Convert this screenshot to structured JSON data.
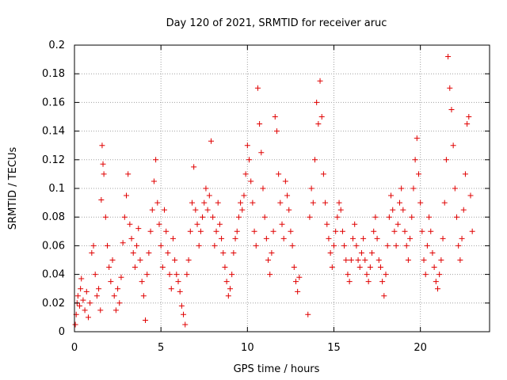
{
  "chart_data": {
    "type": "scatter",
    "title": "Day 120 of 2021, SRMTID for receiver aruc",
    "xlabel": "GPS time / hours",
    "ylabel": "SRMTID / TECUs",
    "xlim": [
      0,
      24
    ],
    "ylim": [
      0,
      0.2
    ],
    "xticks": [
      0,
      5,
      10,
      15,
      20
    ],
    "xtick_labels": [
      "0",
      "5",
      "10",
      "15",
      "20"
    ],
    "yticks": [
      0,
      0.02,
      0.04,
      0.06,
      0.08,
      0.1,
      0.12,
      0.14,
      0.16,
      0.18,
      0.2
    ],
    "ytick_labels": [
      "0",
      "0.02",
      "0.04",
      "0.06",
      "0.08",
      "0.1",
      "0.12",
      "0.14",
      "0.16",
      "0.18",
      "0.2"
    ],
    "grid": true,
    "marker": "+",
    "color": "#e00000",
    "series": [
      {
        "name": "SRMTID",
        "points": [
          [
            0.05,
            0.005
          ],
          [
            0.1,
            0.012
          ],
          [
            0.15,
            0.02
          ],
          [
            0.2,
            0.025
          ],
          [
            0.3,
            0.018
          ],
          [
            0.35,
            0.03
          ],
          [
            0.4,
            0.037
          ],
          [
            0.5,
            0.022
          ],
          [
            0.6,
            0.015
          ],
          [
            0.7,
            0.028
          ],
          [
            0.8,
            0.01
          ],
          [
            0.9,
            0.02
          ],
          [
            1.0,
            0.055
          ],
          [
            1.1,
            0.06
          ],
          [
            1.2,
            0.04
          ],
          [
            1.3,
            0.025
          ],
          [
            1.4,
            0.03
          ],
          [
            1.5,
            0.015
          ],
          [
            1.55,
            0.092
          ],
          [
            1.6,
            0.13
          ],
          [
            1.65,
            0.117
          ],
          [
            1.7,
            0.11
          ],
          [
            1.8,
            0.08
          ],
          [
            1.9,
            0.06
          ],
          [
            2.0,
            0.045
          ],
          [
            2.1,
            0.035
          ],
          [
            2.2,
            0.05
          ],
          [
            2.3,
            0.025
          ],
          [
            2.4,
            0.015
          ],
          [
            2.5,
            0.03
          ],
          [
            2.6,
            0.02
          ],
          [
            2.7,
            0.038
          ],
          [
            2.8,
            0.062
          ],
          [
            2.9,
            0.08
          ],
          [
            3.0,
            0.095
          ],
          [
            3.1,
            0.11
          ],
          [
            3.2,
            0.075
          ],
          [
            3.3,
            0.065
          ],
          [
            3.4,
            0.055
          ],
          [
            3.5,
            0.045
          ],
          [
            3.6,
            0.06
          ],
          [
            3.7,
            0.072
          ],
          [
            3.8,
            0.05
          ],
          [
            3.9,
            0.035
          ],
          [
            4.0,
            0.025
          ],
          [
            4.1,
            0.008
          ],
          [
            4.2,
            0.04
          ],
          [
            4.3,
            0.055
          ],
          [
            4.4,
            0.07
          ],
          [
            4.5,
            0.085
          ],
          [
            4.6,
            0.105
          ],
          [
            4.7,
            0.12
          ],
          [
            4.8,
            0.09
          ],
          [
            4.9,
            0.075
          ],
          [
            5.0,
            0.06
          ],
          [
            5.1,
            0.045
          ],
          [
            5.2,
            0.085
          ],
          [
            5.3,
            0.07
          ],
          [
            5.4,
            0.055
          ],
          [
            5.5,
            0.04
          ],
          [
            5.6,
            0.03
          ],
          [
            5.7,
            0.065
          ],
          [
            5.8,
            0.05
          ],
          [
            5.9,
            0.04
          ],
          [
            6.0,
            0.035
          ],
          [
            6.1,
            0.028
          ],
          [
            6.2,
            0.018
          ],
          [
            6.3,
            0.012
          ],
          [
            6.4,
            0.005
          ],
          [
            6.5,
            0.04
          ],
          [
            6.6,
            0.05
          ],
          [
            6.7,
            0.07
          ],
          [
            6.8,
            0.09
          ],
          [
            6.9,
            0.115
          ],
          [
            7.0,
            0.085
          ],
          [
            7.1,
            0.075
          ],
          [
            7.2,
            0.06
          ],
          [
            7.3,
            0.07
          ],
          [
            7.4,
            0.08
          ],
          [
            7.5,
            0.09
          ],
          [
            7.6,
            0.1
          ],
          [
            7.7,
            0.085
          ],
          [
            7.8,
            0.095
          ],
          [
            7.9,
            0.133
          ],
          [
            8.0,
            0.08
          ],
          [
            8.1,
            0.06
          ],
          [
            8.2,
            0.07
          ],
          [
            8.3,
            0.09
          ],
          [
            8.4,
            0.075
          ],
          [
            8.5,
            0.065
          ],
          [
            8.6,
            0.055
          ],
          [
            8.7,
            0.045
          ],
          [
            8.8,
            0.035
          ],
          [
            8.9,
            0.025
          ],
          [
            9.0,
            0.03
          ],
          [
            9.1,
            0.04
          ],
          [
            9.2,
            0.055
          ],
          [
            9.3,
            0.065
          ],
          [
            9.4,
            0.07
          ],
          [
            9.5,
            0.08
          ],
          [
            9.6,
            0.09
          ],
          [
            9.7,
            0.085
          ],
          [
            9.8,
            0.095
          ],
          [
            9.9,
            0.11
          ],
          [
            10.0,
            0.13
          ],
          [
            10.1,
            0.12
          ],
          [
            10.2,
            0.105
          ],
          [
            10.3,
            0.09
          ],
          [
            10.4,
            0.07
          ],
          [
            10.5,
            0.06
          ],
          [
            10.6,
            0.17
          ],
          [
            10.7,
            0.145
          ],
          [
            10.8,
            0.125
          ],
          [
            10.9,
            0.1
          ],
          [
            11.0,
            0.08
          ],
          [
            11.1,
            0.065
          ],
          [
            11.2,
            0.05
          ],
          [
            11.3,
            0.04
          ],
          [
            11.4,
            0.055
          ],
          [
            11.5,
            0.07
          ],
          [
            11.6,
            0.15
          ],
          [
            11.7,
            0.14
          ],
          [
            11.8,
            0.11
          ],
          [
            11.9,
            0.09
          ],
          [
            12.0,
            0.075
          ],
          [
            12.1,
            0.065
          ],
          [
            12.2,
            0.105
          ],
          [
            12.3,
            0.095
          ],
          [
            12.4,
            0.085
          ],
          [
            12.5,
            0.07
          ],
          [
            12.6,
            0.06
          ],
          [
            12.7,
            0.045
          ],
          [
            12.8,
            0.035
          ],
          [
            12.9,
            0.028
          ],
          [
            13.0,
            0.038
          ],
          [
            13.5,
            0.012
          ],
          [
            13.6,
            0.08
          ],
          [
            13.7,
            0.1
          ],
          [
            13.8,
            0.09
          ],
          [
            13.9,
            0.12
          ],
          [
            14.0,
            0.16
          ],
          [
            14.1,
            0.145
          ],
          [
            14.2,
            0.175
          ],
          [
            14.3,
            0.15
          ],
          [
            14.4,
            0.11
          ],
          [
            14.5,
            0.09
          ],
          [
            14.6,
            0.075
          ],
          [
            14.7,
            0.065
          ],
          [
            14.8,
            0.055
          ],
          [
            14.9,
            0.045
          ],
          [
            15.0,
            0.06
          ],
          [
            15.1,
            0.07
          ],
          [
            15.2,
            0.08
          ],
          [
            15.3,
            0.09
          ],
          [
            15.4,
            0.085
          ],
          [
            15.5,
            0.07
          ],
          [
            15.6,
            0.06
          ],
          [
            15.7,
            0.05
          ],
          [
            15.8,
            0.04
          ],
          [
            15.9,
            0.035
          ],
          [
            16.0,
            0.05
          ],
          [
            16.1,
            0.065
          ],
          [
            16.2,
            0.075
          ],
          [
            16.3,
            0.06
          ],
          [
            16.4,
            0.05
          ],
          [
            16.5,
            0.045
          ],
          [
            16.6,
            0.055
          ],
          [
            16.7,
            0.065
          ],
          [
            16.8,
            0.05
          ],
          [
            16.9,
            0.04
          ],
          [
            17.0,
            0.035
          ],
          [
            17.1,
            0.045
          ],
          [
            17.2,
            0.055
          ],
          [
            17.3,
            0.07
          ],
          [
            17.4,
            0.08
          ],
          [
            17.5,
            0.065
          ],
          [
            17.6,
            0.05
          ],
          [
            17.7,
            0.045
          ],
          [
            17.8,
            0.035
          ],
          [
            17.9,
            0.025
          ],
          [
            18.0,
            0.04
          ],
          [
            18.1,
            0.06
          ],
          [
            18.2,
            0.08
          ],
          [
            18.3,
            0.095
          ],
          [
            18.4,
            0.085
          ],
          [
            18.5,
            0.07
          ],
          [
            18.6,
            0.06
          ],
          [
            18.7,
            0.075
          ],
          [
            18.8,
            0.09
          ],
          [
            18.9,
            0.1
          ],
          [
            19.0,
            0.085
          ],
          [
            19.1,
            0.07
          ],
          [
            19.2,
            0.06
          ],
          [
            19.3,
            0.05
          ],
          [
            19.4,
            0.065
          ],
          [
            19.5,
            0.08
          ],
          [
            19.6,
            0.1
          ],
          [
            19.7,
            0.12
          ],
          [
            19.8,
            0.135
          ],
          [
            19.9,
            0.11
          ],
          [
            20.0,
            0.09
          ],
          [
            20.1,
            0.07
          ],
          [
            20.2,
            0.05
          ],
          [
            20.3,
            0.04
          ],
          [
            20.4,
            0.06
          ],
          [
            20.5,
            0.08
          ],
          [
            20.6,
            0.07
          ],
          [
            20.7,
            0.055
          ],
          [
            20.8,
            0.045
          ],
          [
            20.9,
            0.035
          ],
          [
            21.0,
            0.03
          ],
          [
            21.1,
            0.04
          ],
          [
            21.2,
            0.05
          ],
          [
            21.3,
            0.065
          ],
          [
            21.4,
            0.09
          ],
          [
            21.5,
            0.12
          ],
          [
            21.6,
            0.192
          ],
          [
            21.7,
            0.17
          ],
          [
            21.8,
            0.155
          ],
          [
            21.9,
            0.13
          ],
          [
            22.0,
            0.1
          ],
          [
            22.1,
            0.08
          ],
          [
            22.2,
            0.06
          ],
          [
            22.3,
            0.05
          ],
          [
            22.4,
            0.065
          ],
          [
            22.5,
            0.085
          ],
          [
            22.6,
            0.11
          ],
          [
            22.7,
            0.145
          ],
          [
            22.8,
            0.15
          ],
          [
            22.9,
            0.095
          ],
          [
            23.0,
            0.07
          ]
        ]
      }
    ]
  }
}
